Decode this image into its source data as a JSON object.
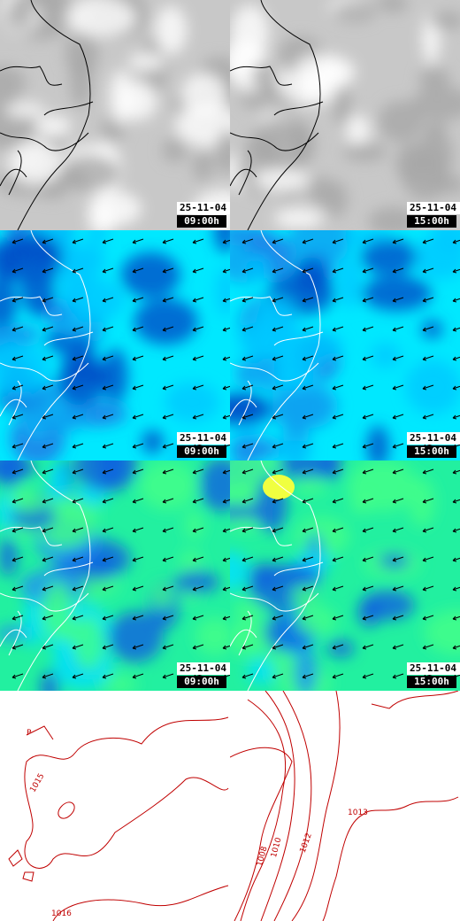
{
  "panels": [
    {
      "date": "25-11-04",
      "time": "09:00h"
    },
    {
      "date": "25-11-04",
      "time": "15:00h"
    },
    {
      "date": "25-11-04",
      "time": "09:00h"
    },
    {
      "date": "25-11-04",
      "time": "15:00h"
    },
    {
      "date": "25-11-04",
      "time": "09:00h"
    },
    {
      "date": "25-11-04",
      "time": "15:00h"
    }
  ],
  "contours": {
    "left": [
      "P",
      "1015",
      "1016"
    ],
    "right": [
      "1008",
      "1010",
      "1012",
      "1013"
    ]
  }
}
